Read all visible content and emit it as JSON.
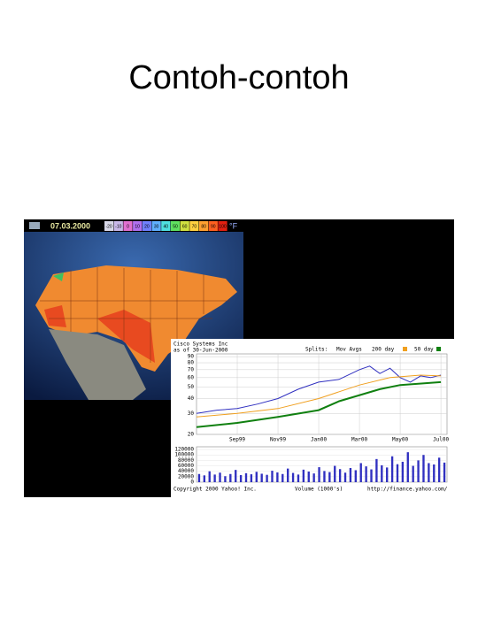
{
  "slide": {
    "title": "Contoh-contoh"
  },
  "weather_map": {
    "date": "07.03.2000",
    "unit": "°F",
    "legend": [
      {
        "label": "-20",
        "color": "#d8d8e8"
      },
      {
        "label": "-10",
        "color": "#c8b8e8"
      },
      {
        "label": "0",
        "color": "#e070d0"
      },
      {
        "label": "10",
        "color": "#b070f0"
      },
      {
        "label": "20",
        "color": "#7080ff"
      },
      {
        "label": "30",
        "color": "#60b0ff"
      },
      {
        "label": "40",
        "color": "#50e0e0"
      },
      {
        "label": "50",
        "color": "#60e060"
      },
      {
        "label": "60",
        "color": "#d0e040"
      },
      {
        "label": "70",
        "color": "#ffd040"
      },
      {
        "label": "80",
        "color": "#ffa030"
      },
      {
        "label": "90",
        "color": "#ff6020"
      },
      {
        "label": "100",
        "color": "#e02010"
      }
    ]
  },
  "stock_chart": {
    "company": "Cisco Systems Inc",
    "as_of": "as of 30-Jun-2000",
    "splits": "Splits:",
    "mov_avgs": "Mov Avgs",
    "ma200_label": "200 day",
    "ma50_label": "50 day",
    "log_scale": true,
    "ylim": [
      20,
      95
    ],
    "yticks": [
      20,
      30,
      40,
      50,
      60,
      70,
      80,
      90
    ],
    "xlim": [
      0,
      12.3
    ],
    "xticks": [
      {
        "value": 2,
        "label": "Sep99"
      },
      {
        "value": 4,
        "label": "Nov99"
      },
      {
        "value": 6,
        "label": "Jan00"
      },
      {
        "value": 8,
        "label": "Mar00"
      },
      {
        "value": 10,
        "label": "May00"
      },
      {
        "value": 12,
        "label": "Jul00"
      }
    ],
    "series": [
      {
        "name": "price",
        "color": "#3030c0",
        "x": [
          0,
          1,
          2,
          3,
          4,
          5,
          6,
          7,
          8,
          8.5,
          9,
          9.5,
          10,
          10.5,
          11,
          11.5,
          12
        ],
        "values": [
          30,
          32,
          33,
          36,
          40,
          48,
          55,
          58,
          70,
          75,
          65,
          72,
          60,
          55,
          62,
          60,
          63
        ]
      },
      {
        "name": "200 day",
        "color": "#f0a020",
        "x": [
          0,
          2,
          4,
          6,
          8,
          9.5,
          11,
          12
        ],
        "values": [
          28,
          30,
          33,
          40,
          52,
          60,
          63,
          62
        ]
      },
      {
        "name": "50 day",
        "color": "#108010",
        "x": [
          0,
          2,
          4,
          6,
          7,
          9,
          10,
          12
        ],
        "values": [
          23,
          25,
          28,
          32,
          38,
          48,
          52,
          55
        ]
      }
    ],
    "volume": {
      "label": "Volume (1000's)",
      "ylim": [
        0,
        130000
      ],
      "yticks": [
        {
          "value": 120000,
          "label": "120000"
        },
        {
          "value": 100000,
          "label": "100000"
        },
        {
          "value": 80000,
          "label": "80000"
        },
        {
          "value": 60000,
          "label": "60000"
        },
        {
          "value": 40000,
          "label": "40000"
        },
        {
          "value": 20000,
          "label": "20000"
        },
        {
          "value": 0,
          "label": "0"
        }
      ],
      "values": [
        30000,
        25000,
        40000,
        28000,
        35000,
        22000,
        30000,
        45000,
        26000,
        33000,
        29000,
        38000,
        31000,
        27000,
        42000,
        36000,
        30000,
        50000,
        34000,
        28000,
        46000,
        39000,
        32000,
        55000,
        41000,
        37000,
        60000,
        48000,
        35000,
        52000,
        44000,
        70000,
        58000,
        47000,
        85000,
        62000,
        54000,
        95000,
        66000,
        75000,
        110000,
        60000,
        80000,
        100000,
        70000,
        65000,
        90000,
        72000
      ]
    },
    "copyright": "Copyright 2000 Yahoo! Inc.",
    "url": "http://finance.yahoo.com/"
  }
}
